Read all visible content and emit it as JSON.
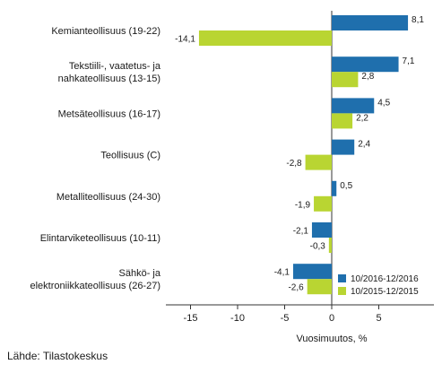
{
  "chart_data": {
    "type": "bar",
    "orientation": "horizontal",
    "categories": [
      [
        "Kemianteollisuus (19-22)"
      ],
      [
        "Tekstiili-, vaatetus- ja",
        "nahkateollisuus (13-15)"
      ],
      [
        "Metsäteollisuus (16-17)"
      ],
      [
        "Teollisuus (C)"
      ],
      [
        "Metalliteollisuus (24-30)"
      ],
      [
        "Elintarviketeollisuus (10-11)"
      ],
      [
        "Sähkö- ja",
        "elektroniikkateollisuus (26-27)"
      ]
    ],
    "series": [
      {
        "name": "10/2016-12/2016",
        "color": "#1f6fad",
        "values": [
          8.1,
          7.1,
          4.5,
          2.4,
          0.5,
          -2.1,
          -4.1
        ],
        "labels": [
          "8,1",
          "7,1",
          "4,5",
          "2,4",
          "0,5",
          "-2,1",
          "-4,1"
        ]
      },
      {
        "name": "10/2015-12/2015",
        "color": "#b9d532",
        "values": [
          -14.1,
          2.8,
          2.2,
          -2.8,
          -1.9,
          -0.3,
          -2.6
        ],
        "labels": [
          "-14,1",
          "2,8",
          "2,2",
          "-2,8",
          "-1,9",
          "-0,3",
          "-2,6"
        ]
      }
    ],
    "xlabel": "Vuosimuutos, %",
    "xlim": [
      -17,
      10
    ],
    "xticks": [
      -15,
      -10,
      -5,
      0,
      5
    ],
    "xtick_labels": [
      "-15",
      "-10",
      "-5",
      "0",
      "5"
    ],
    "grid": false,
    "legend_position": "bottom-right"
  },
  "source": "Lähde: Tilastokeskus"
}
